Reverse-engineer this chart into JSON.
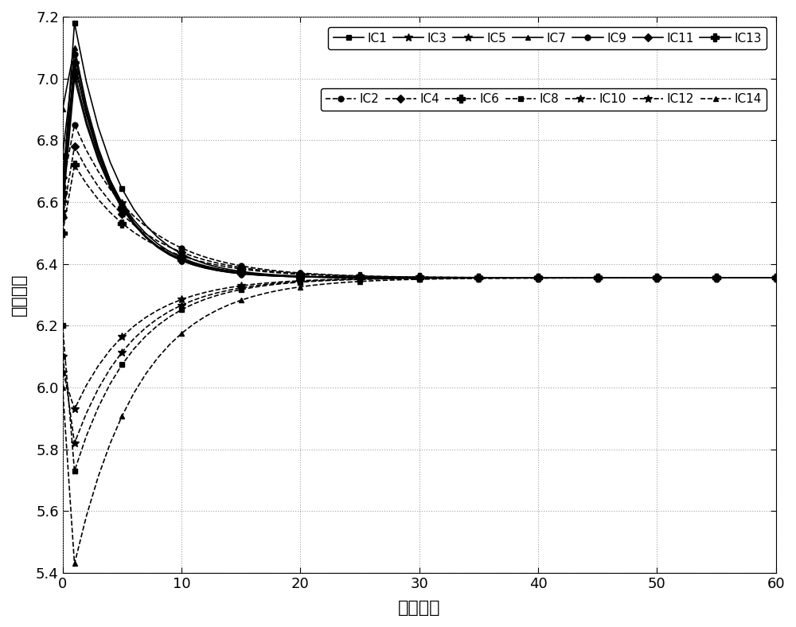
{
  "xlabel": "迭代次数",
  "ylabel": "成本增量",
  "xlim": [
    0,
    60
  ],
  "ylim": [
    5.4,
    7.2
  ],
  "xticks": [
    0,
    10,
    20,
    30,
    40,
    50,
    60
  ],
  "yticks": [
    5.4,
    5.6,
    5.8,
    6.0,
    6.2,
    6.4,
    6.6,
    6.8,
    7.0,
    7.2
  ],
  "convergence_value": 6.355,
  "n_iter": 61,
  "color": "black",
  "background_color": "white",
  "grid_color": "#999999",
  "marker_size": 5,
  "linewidth": 1.2,
  "curves": [
    {
      "name": "IC1",
      "y0": 6.62,
      "peak": 7.18,
      "tau": 3.8,
      "style": "solid",
      "marker": "s",
      "direction": "down"
    },
    {
      "name": "IC2",
      "y0": 6.65,
      "peak": 6.85,
      "tau": 5.5,
      "style": "dashed",
      "marker": "o",
      "direction": "down"
    },
    {
      "name": "IC3",
      "y0": 6.6,
      "peak": 7.05,
      "tau": 3.8,
      "style": "solid",
      "marker": "*",
      "direction": "down"
    },
    {
      "name": "IC4",
      "y0": 6.55,
      "peak": 6.78,
      "tau": 5.5,
      "style": "dashed",
      "marker": "D",
      "direction": "down"
    },
    {
      "name": "IC5",
      "y0": 6.57,
      "peak": 7.0,
      "tau": 3.8,
      "style": "solid",
      "marker": "*",
      "direction": "down"
    },
    {
      "name": "IC6",
      "y0": 6.5,
      "peak": 6.72,
      "tau": 5.5,
      "style": "dashed",
      "marker": "P",
      "direction": "down"
    },
    {
      "name": "IC7",
      "y0": 6.9,
      "peak": 7.1,
      "tau": 3.5,
      "style": "solid",
      "marker": "^",
      "direction": "down"
    },
    {
      "name": "IC8",
      "y0": 6.2,
      "peak": 5.73,
      "tau": 5.0,
      "style": "dashed",
      "marker": "s",
      "direction": "up"
    },
    {
      "name": "IC9",
      "y0": 6.75,
      "peak": 7.08,
      "tau": 3.5,
      "style": "solid",
      "marker": "o",
      "direction": "down"
    },
    {
      "name": "IC10",
      "y0": 6.1,
      "peak": 5.82,
      "tau": 5.0,
      "style": "dashed",
      "marker": "*",
      "direction": "up"
    },
    {
      "name": "IC11",
      "y0": 6.68,
      "peak": 7.05,
      "tau": 3.6,
      "style": "solid",
      "marker": "D",
      "direction": "down"
    },
    {
      "name": "IC12",
      "y0": 6.05,
      "peak": 5.93,
      "tau": 5.0,
      "style": "dashed",
      "marker": "*",
      "direction": "up"
    },
    {
      "name": "IC13",
      "y0": 6.63,
      "peak": 7.02,
      "tau": 3.7,
      "style": "solid",
      "marker": "P",
      "direction": "down"
    },
    {
      "name": "IC14",
      "y0": 6.0,
      "peak": 5.43,
      "tau": 5.5,
      "style": "dashed",
      "marker": "^",
      "direction": "up"
    }
  ],
  "legend_row1": [
    "IC1",
    "IC3",
    "IC5",
    "IC7",
    "IC9",
    "IC11",
    "IC13"
  ],
  "legend_row2": [
    "IC2",
    "IC4",
    "IC6",
    "IC8",
    "IC10",
    "IC12",
    "IC14"
  ]
}
